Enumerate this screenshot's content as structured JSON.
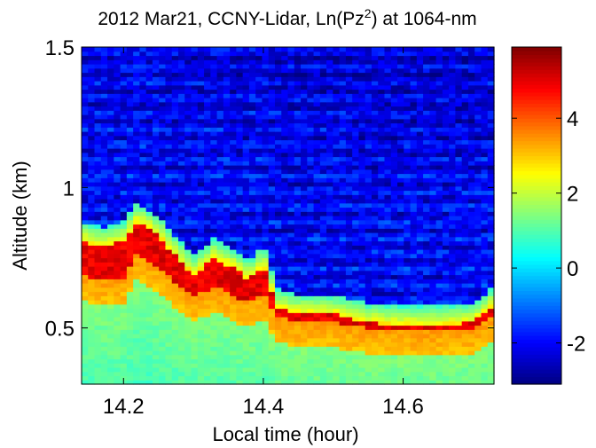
{
  "chart_data": {
    "type": "heatmap",
    "title_main": "2012 Mar21, CCNY-Lidar, Ln(Pz",
    "title_sup": "2",
    "title_tail": ") at 1064-nm",
    "xlabel": "Local time (hour)",
    "ylabel": "Altitude (km)",
    "xlim": [
      14.14,
      14.73
    ],
    "ylim": [
      0.3,
      1.5
    ],
    "xticks": [
      14.2,
      14.4,
      14.6
    ],
    "xtick_labels": [
      "14.2",
      "14.4",
      "14.6"
    ],
    "yticks": [
      0.5,
      1.0,
      1.5
    ],
    "ytick_labels": [
      "0.5",
      "1",
      "1.5"
    ],
    "colorbar": {
      "range": [
        -3.1,
        5.9
      ],
      "ticks": [
        -2,
        0,
        2,
        4
      ],
      "tick_labels": [
        "-2",
        "0",
        "2",
        "4"
      ],
      "colormap": "jet"
    },
    "pbl_top_km": {
      "time": [
        14.14,
        14.17,
        14.2,
        14.22,
        14.25,
        14.28,
        14.3,
        14.33,
        14.36,
        14.38,
        14.4,
        14.42,
        14.45,
        14.5,
        14.55,
        14.6,
        14.65,
        14.7,
        14.73
      ],
      "altitude": [
        0.86,
        0.84,
        0.86,
        0.93,
        0.88,
        0.79,
        0.74,
        0.8,
        0.76,
        0.72,
        0.78,
        0.62,
        0.6,
        0.6,
        0.57,
        0.56,
        0.56,
        0.57,
        0.63
      ]
    },
    "layer_peak_km": {
      "time": [
        14.14,
        14.17,
        14.2,
        14.22,
        14.25,
        14.28,
        14.3,
        14.33,
        14.36,
        14.38,
        14.4,
        14.42,
        14.45,
        14.5,
        14.55,
        14.6,
        14.65,
        14.7,
        14.73
      ],
      "altitude": [
        0.72,
        0.7,
        0.71,
        0.8,
        0.75,
        0.68,
        0.64,
        0.68,
        0.64,
        0.63,
        0.66,
        0.57,
        0.55,
        0.55,
        0.53,
        0.52,
        0.52,
        0.53,
        0.57
      ]
    }
  }
}
